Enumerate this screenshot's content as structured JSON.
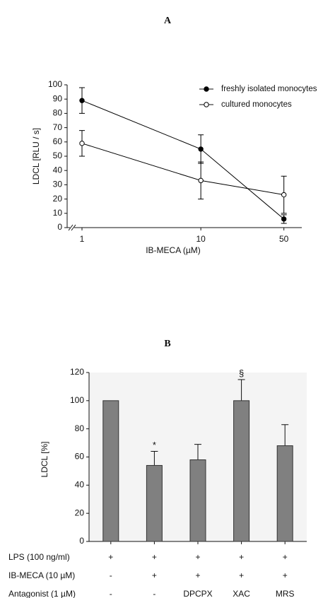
{
  "chart_data": [
    {
      "type": "line",
      "title": "A",
      "xlabel": "IB-MECA (µM)",
      "ylabel": "LDCL [RLU / s]",
      "x": [
        1,
        10,
        50
      ],
      "xlog": true,
      "xlim": [
        0.75,
        60
      ],
      "xticks": [
        1,
        10,
        50
      ],
      "ylim": [
        0,
        100
      ],
      "yticks": [
        0,
        10,
        20,
        30,
        40,
        50,
        60,
        70,
        80,
        90,
        100
      ],
      "legend": "upper right",
      "series": [
        {
          "name": "freshly isolated monocytes",
          "color": "#000000",
          "marker": "filled",
          "values": [
            89,
            55,
            6
          ],
          "errors": [
            9,
            10,
            3
          ]
        },
        {
          "name": "cultured monocytes",
          "color": "#000000",
          "marker": "open",
          "values": [
            59,
            33,
            23
          ],
          "errors": [
            9,
            13,
            13
          ]
        }
      ]
    },
    {
      "type": "bar",
      "title": "B",
      "ylabel": "LDCL [%]",
      "values": [
        100,
        54,
        58,
        100,
        68
      ],
      "errors": [
        null,
        10,
        11,
        15,
        15
      ],
      "bar_labels": [
        null,
        "*",
        null,
        "§",
        null
      ],
      "color": "#808080",
      "ylim": [
        0,
        120
      ],
      "yticks": [
        0,
        20,
        40,
        60,
        80,
        100,
        120
      ],
      "condition_rows": [
        {
          "label": "LPS (100 ng/ml)",
          "cells": [
            "+",
            "+",
            "+",
            "+",
            "+"
          ]
        },
        {
          "label": "IB-MECA (10 µM)",
          "cells": [
            "-",
            "+",
            "+",
            "+",
            "+"
          ]
        },
        {
          "label": "Antagonist (1 µM)",
          "cells": [
            "-",
            "-",
            "DPCPX",
            "XAC",
            "MRS"
          ]
        }
      ]
    }
  ]
}
